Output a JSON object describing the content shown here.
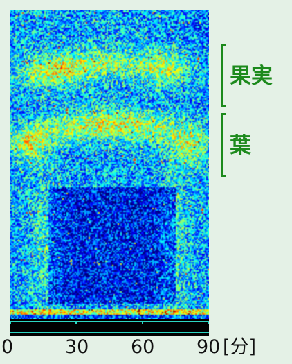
{
  "figure": {
    "labels": {
      "fruit": "果実",
      "leaf": "葉"
    },
    "label_color": "#1c8a1c",
    "colormap": "jet",
    "time_axis": {
      "ticks": [
        "0",
        "30",
        "60",
        "90"
      ],
      "unit": "[分]",
      "tick_values": [
        0,
        30,
        60,
        90
      ],
      "range": [
        0,
        90
      ]
    }
  }
}
